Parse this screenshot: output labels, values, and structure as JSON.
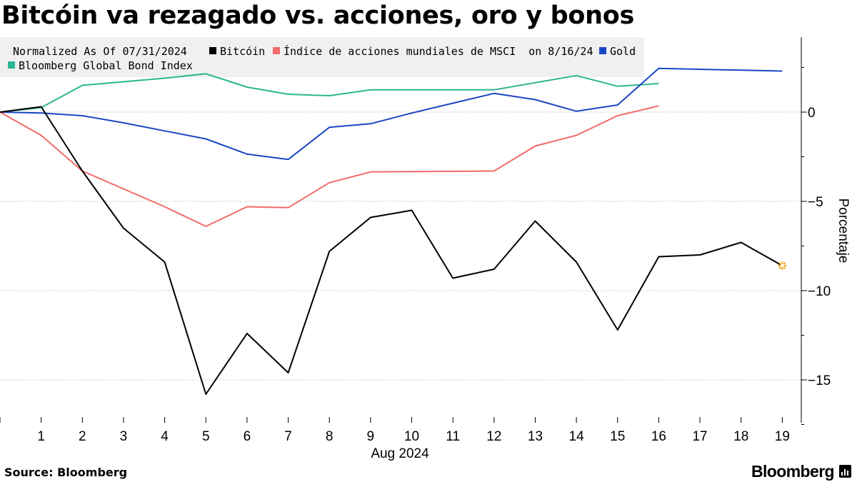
{
  "title": "Bitcóin va rezagado vs. acciones, oro y bonos",
  "source": "Source: Bloomberg",
  "brand": "Bloomberg",
  "chart_data": {
    "type": "line",
    "legend_header": "Normalized As Of 07/31/2024",
    "xlabel": "Aug 2024",
    "ylabel": "Porcentaje",
    "x_ticks": [
      1,
      2,
      3,
      4,
      5,
      6,
      7,
      8,
      9,
      10,
      11,
      12,
      13,
      14,
      15,
      16,
      17,
      18,
      19
    ],
    "y_ticks": [
      0,
      -5,
      -10,
      -15
    ],
    "xlim": [
      0,
      19.2
    ],
    "ylim": [
      -17.5,
      4.2
    ],
    "grid": "horizontal",
    "legend_position": "top-left",
    "series": [
      {
        "name": "Bitcóin",
        "color": "#000000",
        "points": [
          [
            0,
            0
          ],
          [
            1,
            0.3
          ],
          [
            2,
            -3.3
          ],
          [
            3,
            -6.5
          ],
          [
            4,
            -8.4
          ],
          [
            5,
            -15.8
          ],
          [
            6,
            -12.4
          ],
          [
            7,
            -14.6
          ],
          [
            8,
            -7.8
          ],
          [
            9,
            -5.9
          ],
          [
            10,
            -5.5
          ],
          [
            11,
            -9.3
          ],
          [
            12,
            -8.8
          ],
          [
            13,
            -6.1
          ],
          [
            14,
            -8.4
          ],
          [
            15,
            -12.2
          ],
          [
            16,
            -8.1
          ],
          [
            17,
            -8.0
          ],
          [
            18,
            -7.3
          ],
          [
            19,
            -8.6
          ]
        ],
        "end_marker_color": "#f5a623"
      },
      {
        "name": "Índice de acciones mundiales de MSCI  on 8/16/24",
        "color": "#f26a6a",
        "points": [
          [
            0,
            0
          ],
          [
            1,
            -1.3
          ],
          [
            2,
            -3.3
          ],
          [
            3,
            -4.3
          ],
          [
            4,
            -5.3
          ],
          [
            5,
            -6.4
          ],
          [
            6,
            -5.3
          ],
          [
            7,
            -5.35
          ],
          [
            8,
            -3.95
          ],
          [
            9,
            -3.35
          ],
          [
            10,
            -3.33
          ],
          [
            11,
            -3.32
          ],
          [
            12,
            -3.3
          ],
          [
            13,
            -1.9
          ],
          [
            14,
            -1.3
          ],
          [
            15,
            -0.2
          ],
          [
            16,
            0.35
          ]
        ]
      },
      {
        "name": "Gold",
        "color": "#1947c4",
        "points": [
          [
            0,
            0
          ],
          [
            1,
            -0.05
          ],
          [
            2,
            -0.2
          ],
          [
            3,
            -0.6
          ],
          [
            4,
            -1.05
          ],
          [
            5,
            -1.5
          ],
          [
            6,
            -2.35
          ],
          [
            7,
            -2.65
          ],
          [
            8,
            -0.85
          ],
          [
            9,
            -0.65
          ],
          [
            10,
            -0.05
          ],
          [
            11,
            0.5
          ],
          [
            12,
            1.05
          ],
          [
            13,
            0.7
          ],
          [
            14,
            0.05
          ],
          [
            15,
            0.4
          ],
          [
            16,
            2.45
          ],
          [
            19,
            2.3
          ]
        ]
      },
      {
        "name": "Bloomberg Global Bond Index",
        "color": "#2bb592",
        "points": [
          [
            0,
            0
          ],
          [
            1,
            0.25
          ],
          [
            2,
            1.5
          ],
          [
            3,
            1.7
          ],
          [
            4,
            1.9
          ],
          [
            5,
            2.15
          ],
          [
            6,
            1.4
          ],
          [
            7,
            1.0
          ],
          [
            8,
            0.92
          ],
          [
            9,
            1.25
          ],
          [
            10,
            1.25
          ],
          [
            11,
            1.25
          ],
          [
            12,
            1.25
          ],
          [
            13,
            1.65
          ],
          [
            14,
            2.05
          ],
          [
            15,
            1.45
          ],
          [
            16,
            1.6
          ]
        ]
      }
    ]
  }
}
